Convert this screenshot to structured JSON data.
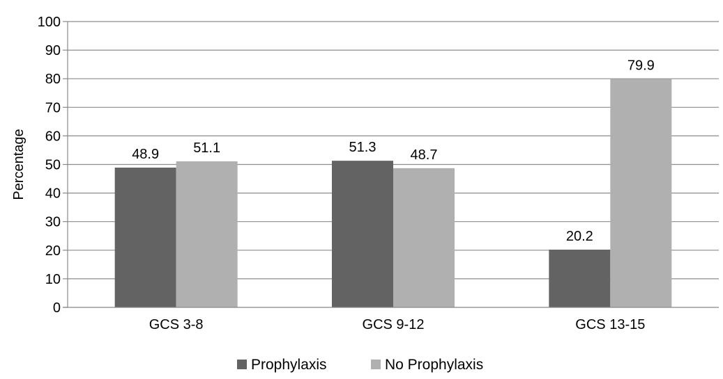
{
  "chart_data": {
    "type": "bar",
    "title": "",
    "xlabel": "",
    "ylabel": "Percentage",
    "ylim": [
      0,
      100
    ],
    "yticks": [
      0,
      10,
      20,
      30,
      40,
      50,
      60,
      70,
      80,
      90,
      100
    ],
    "grid": true,
    "legend_position": "bottom",
    "categories": [
      "GCS 3-8",
      "GCS 9-12",
      "GCS 13-15"
    ],
    "series": [
      {
        "name": "Prophylaxis",
        "values": [
          48.9,
          51.3,
          20.2
        ],
        "labels": [
          "48.9",
          "51.3",
          "20.2"
        ],
        "color": "#636363"
      },
      {
        "name": "No Prophylaxis",
        "values": [
          51.1,
          48.7,
          79.9
        ],
        "labels": [
          "51.1",
          "48.7",
          "79.9"
        ],
        "color": "#b0b0b0"
      }
    ]
  }
}
